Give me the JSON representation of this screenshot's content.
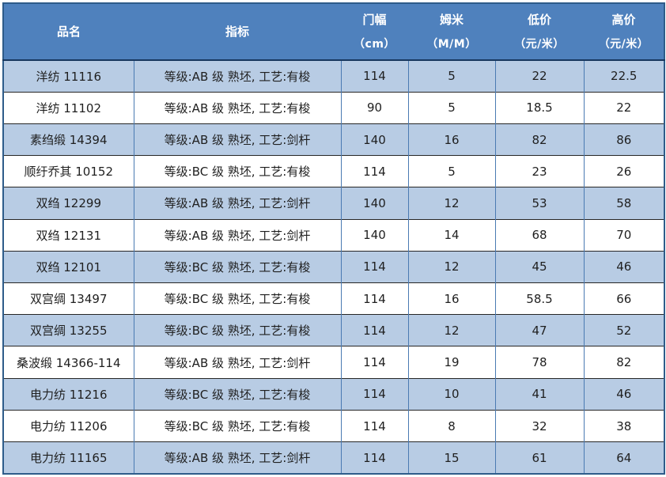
{
  "table": {
    "header": {
      "columns": [
        {
          "label": "品名",
          "unit": ""
        },
        {
          "label": "指标",
          "unit": ""
        },
        {
          "label": "门幅",
          "unit": "（cm）"
        },
        {
          "label": "姆米",
          "unit": "（M/M）"
        },
        {
          "label": "低价",
          "unit": "（元/米）"
        },
        {
          "label": "高价",
          "unit": "（元/米）"
        }
      ]
    },
    "rows": [
      [
        "洋纺 11116",
        "等级:AB 级 熟坯, 工艺:有梭",
        "114",
        "5",
        "22",
        "22.5"
      ],
      [
        "洋纺 11102",
        "等级:AB 级 熟坯, 工艺:有梭",
        "90",
        "5",
        "18.5",
        "22"
      ],
      [
        "素绉缎 14394",
        "等级:AB 级 熟坯, 工艺:剑杆",
        "140",
        "16",
        "82",
        "86"
      ],
      [
        "顺纡乔其 10152",
        "等级:BC 级 熟坯, 工艺:有梭",
        "114",
        "5",
        "23",
        "26"
      ],
      [
        "双绉 12299",
        "等级:AB 级 熟坯, 工艺:剑杆",
        "140",
        "12",
        "53",
        "58"
      ],
      [
        "双绉 12131",
        "等级:AB 级 熟坯, 工艺:剑杆",
        "140",
        "14",
        "68",
        "70"
      ],
      [
        "双绉 12101",
        "等级:BC 级 熟坯, 工艺:有梭",
        "114",
        "12",
        "45",
        "46"
      ],
      [
        "双宫绸 13497",
        "等级:BC 级 熟坯, 工艺:有梭",
        "114",
        "16",
        "58.5",
        "66"
      ],
      [
        "双宫绸 13255",
        "等级:BC 级 熟坯, 工艺:有梭",
        "114",
        "12",
        "47",
        "52"
      ],
      [
        "桑波缎 14366-114",
        "等级:AB 级 熟坯, 工艺:剑杆",
        "114",
        "19",
        "78",
        "82"
      ],
      [
        "电力纺 11216",
        "等级:BC 级 熟坯, 工艺:有梭",
        "114",
        "10",
        "41",
        "46"
      ],
      [
        "电力纺 11206",
        "等级:BC 级 熟坯, 工艺:有梭",
        "114",
        "8",
        "32",
        "38"
      ],
      [
        "电力纺 11165",
        "等级:AB 级 熟坯, 工艺:剑杆",
        "114",
        "15",
        "61",
        "64"
      ]
    ],
    "cell_names": [
      "product-name-cell",
      "spec-cell",
      "width-cell",
      "momme-cell",
      "low-price-cell",
      "high-price-cell"
    ]
  },
  "colors": {
    "header_bg": "#4f81bd",
    "header_text": "#ffffff",
    "row_alt_bg": "#b8cce4",
    "row_bg": "#ffffff",
    "outer_border": "#2e5c8a",
    "row_border": "#262626",
    "col_border": "#4a7ab2",
    "header_divider": "#17375e",
    "text": "#1f1f1f"
  }
}
